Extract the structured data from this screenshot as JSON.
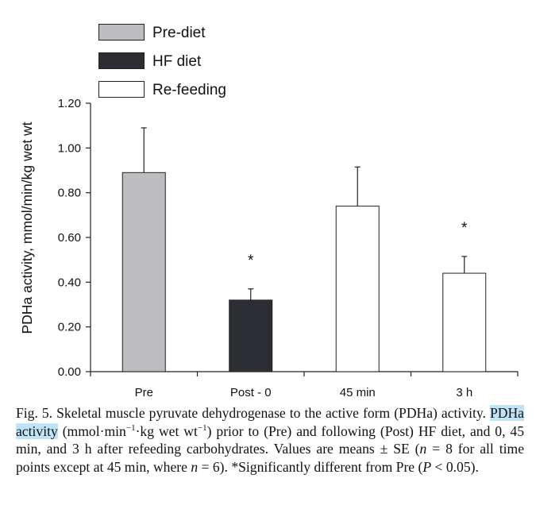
{
  "chart_data": {
    "type": "bar",
    "ylabel": "PDHa activity, mmol/min/kg wet wt",
    "xlabel": "",
    "ylim": [
      0,
      1.2
    ],
    "yticks": [
      "0.00",
      "0.20",
      "0.40",
      "0.60",
      "0.80",
      "1.00",
      "1.20"
    ],
    "categories": [
      "Pre",
      "Post - 0",
      "45 min",
      "3 h"
    ],
    "values": [
      0.89,
      0.32,
      0.74,
      0.44
    ],
    "errors": [
      0.2,
      0.05,
      0.175,
      0.075
    ],
    "bar_series": [
      "Pre-diet",
      "HF diet",
      "Re-feeding",
      "Re-feeding"
    ],
    "significance": [
      "",
      "*",
      "",
      "*"
    ],
    "legend": [
      {
        "label": "Pre-diet",
        "color": "#bdbdbf"
      },
      {
        "label": "HF diet",
        "color": "#2c2e33"
      },
      {
        "label": "Re-feeding",
        "color": "#ffffff"
      }
    ],
    "legend_position": "top-center"
  },
  "caption": {
    "label": "Fig. 5.",
    "text_1": "Skeletal muscle pyruvate dehydrogenase to the active form (PDHa) activity.",
    "highlight": "PDHa activity",
    "text_2": "(mmol·min",
    "sup_1": "−1",
    "text_3": "·kg wet wt",
    "sup_2": "−1",
    "text_4": ") prior to (Pre) and following (Post) HF diet, and 0, 45 min, and 3 h after refeeding carbohydrates. Values are means ± SE (",
    "n_var_1": "n",
    "text_5": "= 8 for all time points except at 45 min, where",
    "n_var_2": "n",
    "text_6": "= 6). *Significantly different from Pre (",
    "p_var": "P",
    "text_7": "< 0.05)."
  }
}
